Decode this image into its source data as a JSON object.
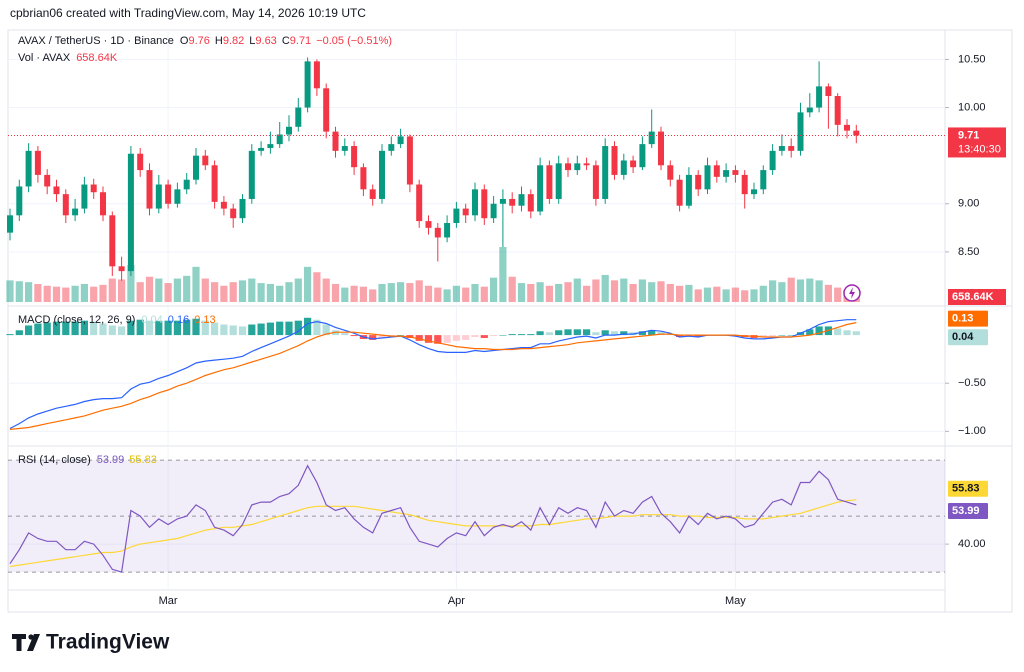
{
  "chart_data": {
    "type": "candlestick",
    "header": "cpbrian06 created with TradingView.com, May 14, 2026 10:19 UTC",
    "title": "AVAX / TetherUS · 1D · Binance",
    "ohlc_prefixes": [
      "O",
      "H",
      "L",
      "C"
    ],
    "change": "−0.05 (−0.51%)",
    "countdown": "13:40:30",
    "brand": "TradingView",
    "up_color": "#089981",
    "down_color": "#f23645",
    "categories": [
      null,
      null,
      null,
      null,
      null,
      null,
      null,
      null,
      null,
      null,
      null,
      null,
      null,
      null,
      null,
      null,
      null,
      "Mar",
      null,
      null,
      null,
      null,
      null,
      null,
      null,
      null,
      null,
      null,
      null,
      null,
      null,
      null,
      null,
      null,
      null,
      null,
      null,
      null,
      null,
      null,
      null,
      null,
      null,
      null,
      null,
      null,
      null,
      null,
      "Apr",
      null,
      null,
      null,
      null,
      null,
      null,
      null,
      null,
      null,
      null,
      null,
      null,
      null,
      null,
      null,
      null,
      null,
      null,
      null,
      null,
      null,
      null,
      null,
      null,
      null,
      null,
      null,
      null,
      null,
      "May",
      null,
      null,
      null,
      null,
      null,
      null,
      null,
      null,
      null,
      null,
      null,
      null,
      null
    ],
    "open": [
      8.7,
      8.88,
      9.18,
      9.55,
      9.3,
      9.18,
      9.1,
      8.88,
      8.95,
      9.2,
      9.12,
      8.88,
      8.35,
      8.3,
      9.52,
      9.35,
      8.95,
      9.2,
      9.0,
      9.15,
      9.25,
      9.5,
      9.4,
      9.02,
      8.95,
      8.85,
      9.05,
      9.55,
      9.58,
      9.62,
      9.72,
      9.8,
      10.0,
      10.48,
      10.2,
      9.75,
      9.55,
      9.6,
      9.38,
      9.15,
      9.05,
      9.55,
      9.62,
      9.7,
      9.2,
      8.82,
      8.75,
      8.65,
      8.8,
      8.95,
      8.88,
      9.15,
      8.85,
      9.0,
      9.05,
      8.98,
      9.1,
      8.92,
      9.4,
      9.05,
      9.42,
      9.35,
      9.42,
      9.4,
      9.05,
      9.6,
      9.3,
      9.45,
      9.38,
      9.62,
      9.75,
      9.4,
      9.25,
      8.98,
      9.3,
      9.15,
      9.4,
      9.28,
      9.35,
      9.3,
      9.1,
      9.15,
      9.35,
      9.55,
      9.6,
      9.55,
      9.95,
      10.0,
      10.22,
      10.12,
      9.82,
      9.76
    ],
    "high": [
      8.95,
      9.25,
      9.63,
      9.6,
      9.36,
      9.25,
      9.15,
      9.05,
      9.28,
      9.26,
      9.18,
      8.92,
      8.45,
      9.6,
      9.58,
      9.42,
      9.3,
      9.25,
      9.22,
      9.32,
      9.58,
      9.56,
      9.45,
      9.08,
      9.0,
      9.1,
      9.62,
      9.65,
      9.75,
      9.85,
      9.92,
      10.1,
      10.52,
      10.5,
      10.25,
      9.8,
      9.68,
      9.65,
      9.42,
      9.2,
      9.62,
      9.7,
      9.78,
      9.72,
      9.25,
      8.88,
      8.8,
      8.88,
      9.02,
      9.0,
      9.22,
      9.2,
      9.08,
      9.15,
      9.12,
      9.18,
      9.15,
      9.48,
      9.45,
      9.5,
      9.48,
      9.5,
      9.48,
      9.45,
      9.68,
      9.65,
      9.52,
      9.5,
      9.7,
      9.98,
      9.8,
      9.45,
      9.3,
      9.38,
      9.35,
      9.48,
      9.45,
      9.42,
      9.4,
      9.35,
      9.22,
      9.4,
      9.62,
      9.72,
      9.68,
      10.05,
      10.15,
      10.48,
      10.25,
      10.15,
      9.88,
      9.82
    ],
    "low": [
      8.62,
      8.82,
      9.12,
      9.22,
      9.1,
      9.02,
      8.8,
      8.82,
      8.9,
      9.05,
      8.82,
      8.25,
      8.2,
      8.25,
      9.28,
      8.88,
      8.9,
      8.95,
      8.96,
      9.1,
      9.2,
      9.35,
      8.95,
      8.88,
      8.75,
      8.8,
      9.0,
      9.5,
      9.52,
      9.58,
      9.65,
      9.75,
      9.95,
      10.12,
      9.68,
      9.48,
      9.5,
      9.3,
      9.08,
      8.98,
      9.0,
      9.5,
      9.58,
      9.12,
      8.75,
      8.68,
      8.4,
      8.6,
      8.75,
      8.8,
      8.82,
      8.78,
      8.8,
      8.55,
      8.9,
      8.92,
      8.85,
      8.88,
      9.0,
      9.0,
      9.28,
      9.3,
      9.35,
      8.98,
      9.0,
      9.25,
      9.25,
      9.32,
      9.35,
      9.58,
      9.35,
      9.18,
      8.92,
      8.95,
      9.08,
      9.1,
      9.22,
      9.22,
      9.22,
      8.95,
      9.05,
      9.1,
      9.3,
      9.5,
      9.48,
      9.5,
      9.9,
      9.95,
      9.78,
      9.7,
      9.68,
      9.63
    ],
    "close": [
      8.88,
      9.18,
      9.55,
      9.3,
      9.18,
      9.1,
      8.88,
      8.95,
      9.2,
      9.12,
      8.88,
      8.35,
      8.3,
      9.52,
      9.35,
      8.95,
      9.2,
      9.0,
      9.15,
      9.25,
      9.5,
      9.4,
      9.02,
      8.95,
      8.85,
      9.05,
      9.55,
      9.58,
      9.62,
      9.72,
      9.8,
      10.0,
      10.48,
      10.2,
      9.75,
      9.55,
      9.6,
      9.38,
      9.15,
      9.05,
      9.55,
      9.62,
      9.7,
      9.2,
      8.82,
      8.75,
      8.65,
      8.8,
      8.95,
      8.88,
      9.15,
      8.85,
      9.0,
      9.05,
      8.98,
      9.1,
      8.92,
      9.4,
      9.05,
      9.42,
      9.35,
      9.42,
      9.4,
      9.05,
      9.6,
      9.3,
      9.45,
      9.38,
      9.62,
      9.75,
      9.4,
      9.25,
      8.98,
      9.3,
      9.15,
      9.4,
      9.28,
      9.35,
      9.3,
      9.1,
      9.15,
      9.35,
      9.55,
      9.6,
      9.55,
      9.95,
      10.0,
      10.22,
      10.12,
      9.82,
      9.76,
      9.71
    ],
    "ylim": [
      8.0,
      10.65
    ],
    "yticks": [
      {
        "value": 8.5,
        "label": "8.50"
      },
      {
        "value": 9,
        "label": "9.00"
      },
      {
        "value": 10,
        "label": "10.00"
      },
      {
        "value": 10.5,
        "label": "10.50"
      }
    ],
    "grid": true,
    "volume": {
      "name": "Vol · AVAX",
      "last_label": "658.64K",
      "values": [
        1200,
        1150,
        1100,
        1000,
        900,
        850,
        800,
        900,
        1000,
        850,
        950,
        1300,
        1250,
        2050,
        1100,
        1400,
        1300,
        1050,
        1300,
        1450,
        1950,
        1300,
        1100,
        900,
        1100,
        1200,
        1300,
        1050,
        1000,
        900,
        1100,
        1300,
        1950,
        1650,
        1300,
        1000,
        800,
        900,
        850,
        700,
        1000,
        1050,
        1100,
        1050,
        1200,
        900,
        800,
        700,
        900,
        800,
        1000,
        850,
        1350,
        3050,
        1400,
        1050,
        1000,
        1100,
        900,
        1000,
        1100,
        1300,
        900,
        1250,
        1500,
        1200,
        1300,
        1000,
        1250,
        1100,
        1150,
        1000,
        900,
        950,
        700,
        800,
        850,
        700,
        800,
        650,
        700,
        900,
        1200,
        1100,
        1350,
        1250,
        1300,
        1200,
        950,
        800,
        700,
        658.64
      ]
    },
    "macd": {
      "name": "MACD (close, 12, 26, 9)",
      "macd_color": "#2962ff",
      "signal_color": "#ff6d00",
      "macd": [
        -0.97,
        -0.92,
        -0.86,
        -0.82,
        -0.79,
        -0.76,
        -0.74,
        -0.72,
        -0.69,
        -0.67,
        -0.66,
        -0.66,
        -0.65,
        -0.56,
        -0.51,
        -0.49,
        -0.45,
        -0.42,
        -0.38,
        -0.34,
        -0.29,
        -0.27,
        -0.26,
        -0.25,
        -0.24,
        -0.22,
        -0.17,
        -0.13,
        -0.09,
        -0.05,
        -0.01,
        0.04,
        0.12,
        0.14,
        0.12,
        0.08,
        0.05,
        0.02,
        -0.02,
        -0.04,
        -0.03,
        -0.02,
        -0.01,
        -0.05,
        -0.1,
        -0.14,
        -0.17,
        -0.18,
        -0.18,
        -0.18,
        -0.16,
        -0.17,
        -0.16,
        -0.15,
        -0.14,
        -0.13,
        -0.13,
        -0.09,
        -0.09,
        -0.06,
        -0.04,
        -0.02,
        -0.01,
        -0.03,
        0.0,
        0.0,
        0.01,
        0.01,
        0.03,
        0.05,
        0.04,
        0.02,
        -0.02,
        -0.01,
        -0.02,
        0.0,
        0.0,
        0.0,
        -0.01,
        -0.03,
        -0.04,
        -0.04,
        -0.03,
        -0.02,
        -0.02,
        0.02,
        0.06,
        0.11,
        0.14,
        0.15,
        0.16,
        0.16
      ],
      "signal": [
        -0.98,
        -0.97,
        -0.96,
        -0.94,
        -0.92,
        -0.9,
        -0.88,
        -0.86,
        -0.84,
        -0.81,
        -0.78,
        -0.76,
        -0.74,
        -0.71,
        -0.67,
        -0.64,
        -0.6,
        -0.57,
        -0.53,
        -0.5,
        -0.46,
        -0.42,
        -0.39,
        -0.36,
        -0.34,
        -0.31,
        -0.28,
        -0.25,
        -0.22,
        -0.19,
        -0.15,
        -0.11,
        -0.06,
        -0.02,
        0.01,
        0.03,
        0.03,
        0.03,
        0.02,
        0.01,
        0.0,
        -0.01,
        -0.01,
        -0.02,
        -0.04,
        -0.06,
        -0.08,
        -0.1,
        -0.12,
        -0.13,
        -0.14,
        -0.14,
        -0.15,
        -0.15,
        -0.15,
        -0.14,
        -0.14,
        -0.13,
        -0.12,
        -0.11,
        -0.1,
        -0.08,
        -0.07,
        -0.06,
        -0.05,
        -0.04,
        -0.03,
        -0.02,
        -0.01,
        0.0,
        0.01,
        0.01,
        0.0,
        0.0,
        0.0,
        0.0,
        0.0,
        0.0,
        0.0,
        -0.01,
        -0.01,
        -0.02,
        -0.02,
        -0.02,
        -0.02,
        -0.01,
        0.0,
        0.02,
        0.05,
        0.08,
        0.11,
        0.13
      ],
      "hist": [
        0.01,
        0.05,
        0.1,
        0.12,
        0.13,
        0.14,
        0.14,
        0.14,
        0.15,
        0.14,
        0.12,
        0.1,
        0.09,
        0.15,
        0.16,
        0.15,
        0.15,
        0.15,
        0.15,
        0.16,
        0.17,
        0.15,
        0.13,
        0.11,
        0.1,
        0.09,
        0.11,
        0.12,
        0.13,
        0.14,
        0.14,
        0.15,
        0.18,
        0.16,
        0.11,
        0.05,
        0.02,
        -0.01,
        -0.04,
        -0.05,
        -0.03,
        -0.01,
        0.0,
        -0.03,
        -0.06,
        -0.08,
        -0.09,
        -0.08,
        -0.06,
        -0.05,
        -0.02,
        -0.03,
        -0.01,
        0.0,
        0.01,
        0.01,
        0.01,
        0.04,
        0.03,
        0.05,
        0.06,
        0.06,
        0.06,
        0.03,
        0.05,
        0.04,
        0.04,
        0.03,
        0.04,
        0.05,
        0.03,
        0.01,
        -0.02,
        -0.01,
        -0.02,
        0.0,
        0.0,
        0.0,
        -0.01,
        -0.02,
        -0.03,
        -0.02,
        -0.01,
        0.0,
        0.0,
        0.03,
        0.06,
        0.09,
        0.09,
        0.07,
        0.05,
        0.04
      ],
      "ylim": [
        -1.09,
        0.24
      ],
      "yticks": [
        {
          "value": -0.5,
          "label": "−0.50"
        },
        {
          "value": -1,
          "label": "−1.00"
        }
      ]
    },
    "rsi": {
      "name": "RSI (14, close)",
      "color": "#7e57c2",
      "ma_color": "#fdd835",
      "values": [
        33,
        38,
        44,
        42,
        41,
        41,
        38,
        38,
        41,
        40,
        36,
        31,
        30,
        52,
        50,
        46,
        49,
        47,
        49,
        50,
        54,
        52,
        46,
        45,
        43,
        47,
        54,
        55,
        55,
        57,
        58,
        61,
        68,
        62,
        54,
        52,
        53,
        49,
        46,
        44,
        51,
        52,
        53,
        46,
        41,
        40,
        39,
        42,
        44,
        43,
        48,
        43,
        46,
        47,
        46,
        48,
        45,
        53,
        47,
        53,
        51,
        53,
        52,
        46,
        55,
        50,
        52,
        51,
        55,
        57,
        51,
        48,
        44,
        50,
        47,
        51,
        49,
        50,
        49,
        46,
        47,
        51,
        55,
        56,
        54,
        62,
        62,
        66,
        63,
        56,
        55,
        53.99
      ],
      "ma": [
        32,
        32.5,
        33,
        33.5,
        34,
        34.5,
        35,
        35.5,
        36,
        36.5,
        37,
        37,
        37.5,
        39,
        40,
        40.5,
        41,
        41.5,
        42,
        43,
        44,
        45,
        45.5,
        46,
        46,
        46.5,
        47,
        48,
        49,
        50,
        51,
        52,
        53,
        53.5,
        53.5,
        53.5,
        53.5,
        53.5,
        53,
        52.5,
        52,
        51.5,
        51,
        50.5,
        49.5,
        48.5,
        48,
        47.5,
        47,
        46.5,
        46.5,
        46.5,
        46.5,
        46.5,
        46.5,
        46.5,
        46.5,
        47,
        47,
        47.5,
        48,
        48.5,
        49,
        49,
        49.5,
        50,
        50,
        50,
        50.5,
        50.5,
        50.5,
        50.5,
        50,
        50,
        50,
        49.5,
        49.5,
        49.5,
        49.5,
        49,
        49,
        49,
        49.5,
        50,
        50.5,
        51,
        52,
        53,
        54,
        55,
        55.5,
        55.83
      ],
      "bands": [
        30,
        50,
        70
      ],
      "ylim": [
        25.4,
        72.9
      ],
      "yticks": [
        {
          "value": 40,
          "label": "40.00"
        }
      ]
    }
  }
}
